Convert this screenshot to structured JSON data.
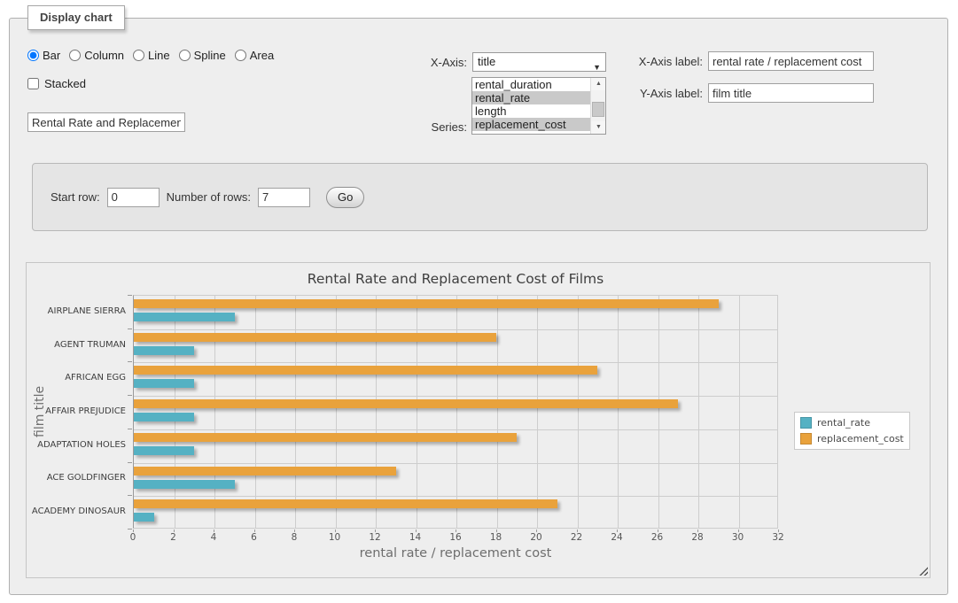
{
  "panel": {
    "legend": "Display chart"
  },
  "controls": {
    "chart_type": {
      "options": [
        "Bar",
        "Column",
        "Line",
        "Spline",
        "Area"
      ],
      "selected": "Bar"
    },
    "stacked": {
      "label": "Stacked",
      "checked": false
    },
    "chart_title_input": {
      "value": "Rental Rate and Replacement Cost of Films"
    },
    "x_axis_select": {
      "label": "X-Axis:",
      "value": "title"
    },
    "series_list": {
      "label": "Series:",
      "options": [
        {
          "label": "rental_duration",
          "selected": false
        },
        {
          "label": "rental_rate",
          "selected": true
        },
        {
          "label": "length",
          "selected": false
        },
        {
          "label": "replacement_cost",
          "selected": true
        }
      ]
    },
    "x_axis_label": {
      "label": "X-Axis label:",
      "value": "rental rate / replacement cost"
    },
    "y_axis_label": {
      "label": "Y-Axis label:",
      "value": "film title"
    },
    "row_controls": {
      "start_row_label": "Start row:",
      "start_row_value": "0",
      "number_of_rows_label": "Number of rows:",
      "number_of_rows_value": "7",
      "go_label": "Go"
    }
  },
  "chart_data": {
    "type": "bar",
    "orientation": "horizontal",
    "title": "Rental Rate and Replacement Cost of Films",
    "xlabel": "rental rate / replacement cost",
    "ylabel": "film title",
    "categories": [
      "AIRPLANE SIERRA",
      "AGENT TRUMAN",
      "AFRICAN EGG",
      "AFFAIR PREJUDICE",
      "ADAPTATION HOLES",
      "ACE GOLDFINGER",
      "ACADEMY DINOSAUR"
    ],
    "series": [
      {
        "name": "rental_rate",
        "color": "#55b1c3",
        "values": [
          4.99,
          2.99,
          2.99,
          2.99,
          2.99,
          4.99,
          0.99
        ]
      },
      {
        "name": "replacement_cost",
        "color": "#e9a23c",
        "values": [
          28.99,
          17.99,
          22.99,
          26.99,
          18.99,
          12.99,
          20.99
        ]
      }
    ],
    "xlim": [
      0,
      32
    ],
    "xtick_step": 2,
    "grid": true,
    "legend_position": "right"
  }
}
